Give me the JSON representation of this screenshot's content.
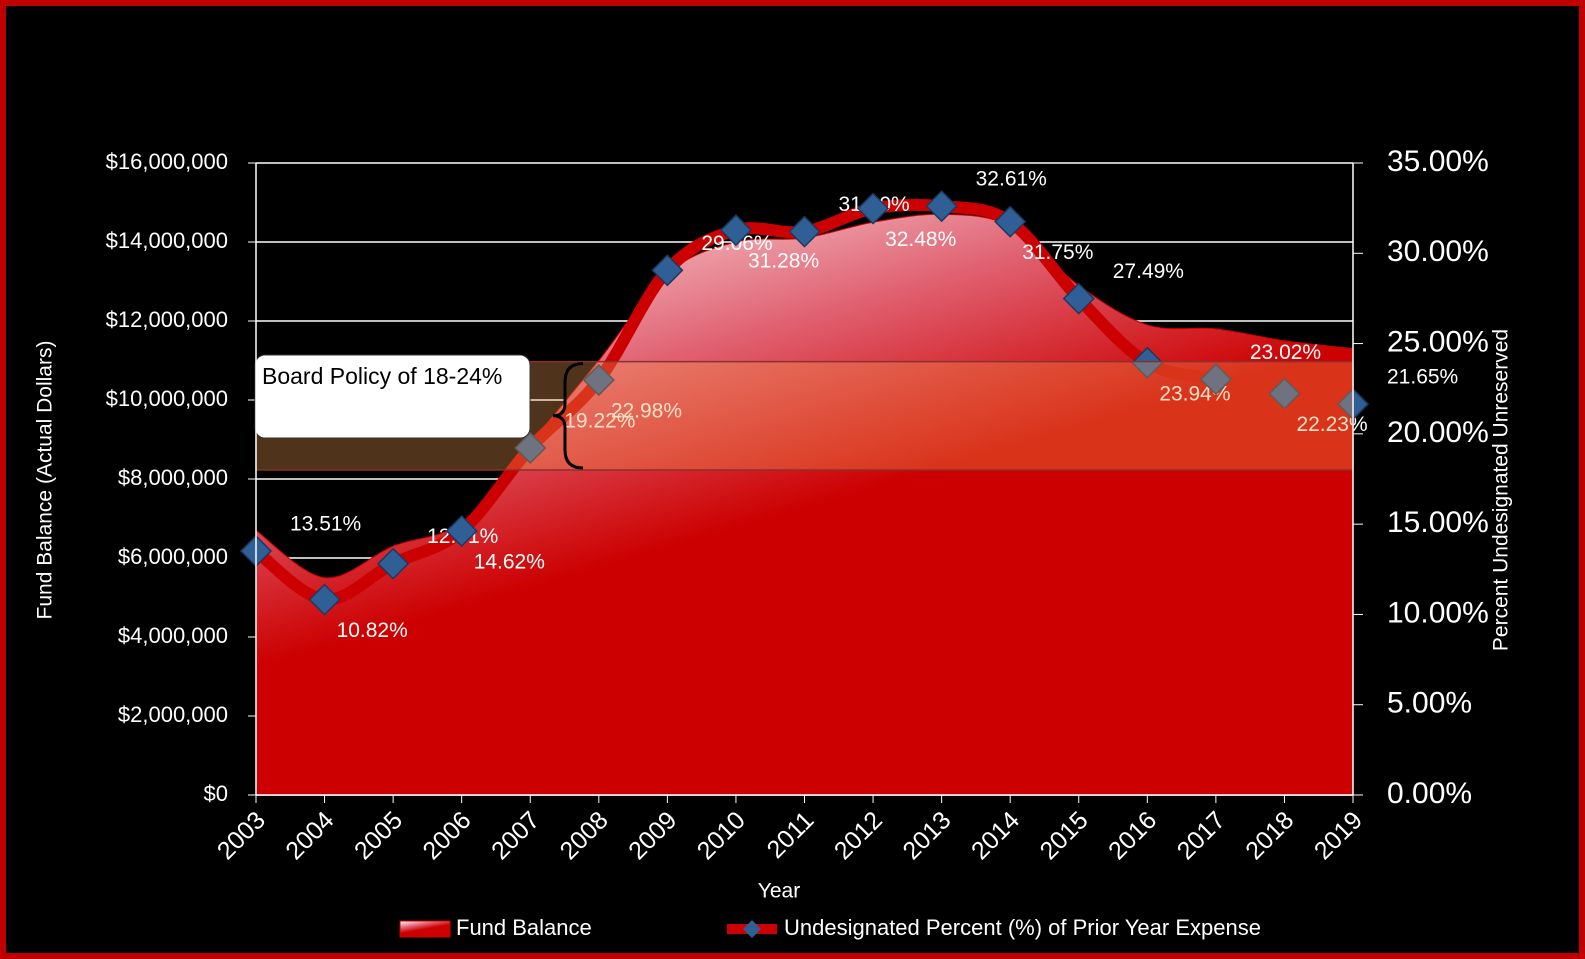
{
  "chart_data": {
    "type": "area-line",
    "categories": [
      "2003",
      "2004",
      "2005",
      "2006",
      "2007",
      "2008",
      "2009",
      "2010",
      "2011",
      "2012",
      "2013",
      "2014",
      "2015",
      "2016",
      "2017",
      "2018",
      "2019"
    ],
    "series": [
      {
        "name": "Fund Balance",
        "color": "#cc0000",
        "values": [
          6700000,
          5500000,
          6300000,
          6900000,
          8900000,
          11000000,
          13200000,
          14000000,
          14100000,
          14500000,
          14700000,
          14400000,
          12900000,
          11900000,
          11800000,
          11500000,
          11300000
        ]
      },
      {
        "name": "Undesignated Percent (%) of Prior Year Expense",
        "color": "#cc0000",
        "marker_color": "#2f5f95",
        "axis": "y2",
        "values": [
          13.51,
          10.82,
          12.81,
          14.62,
          19.22,
          22.98,
          29.06,
          31.28,
          31.2,
          32.48,
          32.61,
          31.75,
          27.49,
          23.94,
          23.02,
          22.23,
          21.65
        ],
        "value_labels": [
          "13.51%",
          "10.82%",
          "12.81%",
          "14.62%",
          "19.22%",
          "22.98%",
          "29.06%",
          "31.28%",
          "31.20%",
          "32.48%",
          "32.61%",
          "31.75%",
          "27.49%",
          "23.94%",
          "23.02%",
          "22.23%",
          "21.65%"
        ]
      }
    ],
    "xlabel": "Year",
    "ylabel": "Fund Balance (Actual Dollars)",
    "y2label": "Percent Undesignated Unreserved",
    "ylim": [
      0,
      16000000
    ],
    "yticks": [
      {
        "value": 0,
        "label": "$0"
      },
      {
        "value": 2000000,
        "label": "$2,000,000"
      },
      {
        "value": 4000000,
        "label": "$4,000,000"
      },
      {
        "value": 6000000,
        "label": "$6,000,000"
      },
      {
        "value": 8000000,
        "label": "$8,000,000"
      },
      {
        "value": 10000000,
        "label": "$10,000,000"
      },
      {
        "value": 12000000,
        "label": "$12,000,000"
      },
      {
        "value": 14000000,
        "label": "$14,000,000"
      },
      {
        "value": 16000000,
        "label": "$16,000,000"
      }
    ],
    "y2lim": [
      0,
      35
    ],
    "y2ticks": [
      {
        "value": 0,
        "label": "0.00%"
      },
      {
        "value": 5,
        "label": "5.00%"
      },
      {
        "value": 10,
        "label": "10.00%"
      },
      {
        "value": 15,
        "label": "15.00%"
      },
      {
        "value": 20,
        "label": "20.00%"
      },
      {
        "value": 25,
        "label": "25.00%"
      },
      {
        "value": 30,
        "label": "30.00%"
      },
      {
        "value": 35,
        "label": "35.00%"
      }
    ],
    "grid": true,
    "annotation": {
      "text": "Board Policy of 18-24%",
      "range": [
        18,
        24
      ],
      "color": "#f5a050"
    },
    "legend": "bottom"
  }
}
